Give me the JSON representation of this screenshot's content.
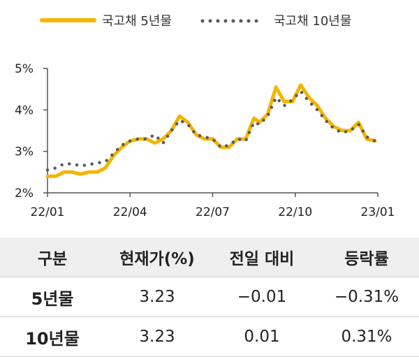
{
  "chart_data": {
    "type": "line",
    "legend": [
      {
        "name": "국고채 5년물",
        "style": "solid",
        "color": "#F5B400"
      },
      {
        "name": "국고채 10년물",
        "style": "dotted",
        "color": "#595959"
      }
    ],
    "legend_position": "top",
    "x_ticks": [
      "22/01",
      "22/04",
      "22/07",
      "22/10",
      "23/01"
    ],
    "y_ticks": [
      "2%",
      "3%",
      "4%",
      "5%"
    ],
    "ylim": [
      2,
      5
    ],
    "xlim": [
      0,
      12
    ],
    "grid": false,
    "series": [
      {
        "name": "국고채 5년물",
        "color": "#F5B400",
        "x": [
          0,
          0.3,
          0.6,
          0.9,
          1.2,
          1.5,
          1.8,
          2.1,
          2.4,
          2.7,
          3.0,
          3.3,
          3.6,
          3.9,
          4.2,
          4.5,
          4.8,
          5.1,
          5.4,
          5.7,
          6.0,
          6.3,
          6.6,
          6.9,
          7.2,
          7.5,
          7.7,
          8.0,
          8.3,
          8.6,
          8.9,
          9.2,
          9.5,
          9.8,
          10.1,
          10.4,
          10.7,
          11.0,
          11.3,
          11.6,
          11.9
        ],
        "y": [
          2.4,
          2.4,
          2.5,
          2.5,
          2.45,
          2.5,
          2.5,
          2.6,
          2.9,
          3.1,
          3.25,
          3.3,
          3.3,
          3.2,
          3.3,
          3.5,
          3.85,
          3.7,
          3.4,
          3.3,
          3.3,
          3.1,
          3.1,
          3.3,
          3.3,
          3.8,
          3.7,
          3.9,
          4.55,
          4.2,
          4.2,
          4.6,
          4.3,
          4.1,
          3.8,
          3.6,
          3.5,
          3.5,
          3.7,
          3.3,
          3.25
        ]
      },
      {
        "name": "국고채 10년물",
        "color": "#595959",
        "x": [
          0,
          0.3,
          0.6,
          0.9,
          1.2,
          1.5,
          1.8,
          2.1,
          2.4,
          2.7,
          3.0,
          3.3,
          3.6,
          3.9,
          4.2,
          4.5,
          4.8,
          5.1,
          5.4,
          5.7,
          6.0,
          6.3,
          6.6,
          6.9,
          7.2,
          7.5,
          7.7,
          8.0,
          8.3,
          8.6,
          8.9,
          9.2,
          9.5,
          9.8,
          10.1,
          10.4,
          10.7,
          11.0,
          11.3,
          11.6,
          11.9
        ],
        "y": [
          2.55,
          2.6,
          2.7,
          2.7,
          2.65,
          2.68,
          2.72,
          2.75,
          2.95,
          3.15,
          3.25,
          3.3,
          3.3,
          3.4,
          3.2,
          3.5,
          3.75,
          3.65,
          3.4,
          3.35,
          3.3,
          3.1,
          3.15,
          3.3,
          3.25,
          3.7,
          3.65,
          3.85,
          4.3,
          4.1,
          4.25,
          4.45,
          4.2,
          4.0,
          3.75,
          3.55,
          3.45,
          3.5,
          3.65,
          3.35,
          3.25
        ]
      }
    ]
  },
  "table": {
    "headers": [
      "구분",
      "현재가(%)",
      "전일 대비",
      "등락률"
    ],
    "rows": [
      [
        "5년물",
        "3.23",
        "−0.01",
        "−0.31%"
      ],
      [
        "10년물",
        "3.23",
        "0.01",
        "0.31%"
      ]
    ]
  }
}
